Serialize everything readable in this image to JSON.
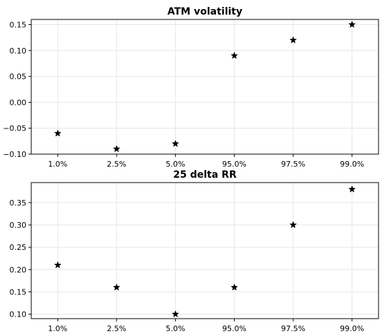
{
  "chart_data": [
    {
      "type": "scatter",
      "title": "ATM volatility",
      "xlabel": "",
      "ylabel": "",
      "categories": [
        "1.0%",
        "2.5%",
        "5.0%",
        "95.0%",
        "97.5%",
        "99.0%"
      ],
      "values": [
        -0.06,
        -0.09,
        -0.08,
        0.09,
        0.12,
        0.15
      ],
      "ylim": [
        -0.1,
        0.16
      ],
      "yticks": [
        -0.1,
        -0.05,
        0.0,
        0.05,
        0.1,
        0.15
      ],
      "ytick_labels": [
        "−0.10",
        "−0.05",
        "0.00",
        "0.05",
        "0.10",
        "0.15"
      ],
      "marker": "star",
      "color": "#000000",
      "grid": true
    },
    {
      "type": "scatter",
      "title": "25 delta RR",
      "xlabel": "",
      "ylabel": "",
      "categories": [
        "1.0%",
        "2.5%",
        "5.0%",
        "95.0%",
        "97.5%",
        "99.0%"
      ],
      "values": [
        0.21,
        0.16,
        0.1,
        0.16,
        0.3,
        0.38
      ],
      "ylim": [
        0.09,
        0.395
      ],
      "yticks": [
        0.1,
        0.15,
        0.2,
        0.25,
        0.3,
        0.35
      ],
      "ytick_labels": [
        "0.10",
        "0.15",
        "0.20",
        "0.25",
        "0.30",
        "0.35"
      ],
      "marker": "star",
      "color": "#000000",
      "grid": true
    }
  ]
}
